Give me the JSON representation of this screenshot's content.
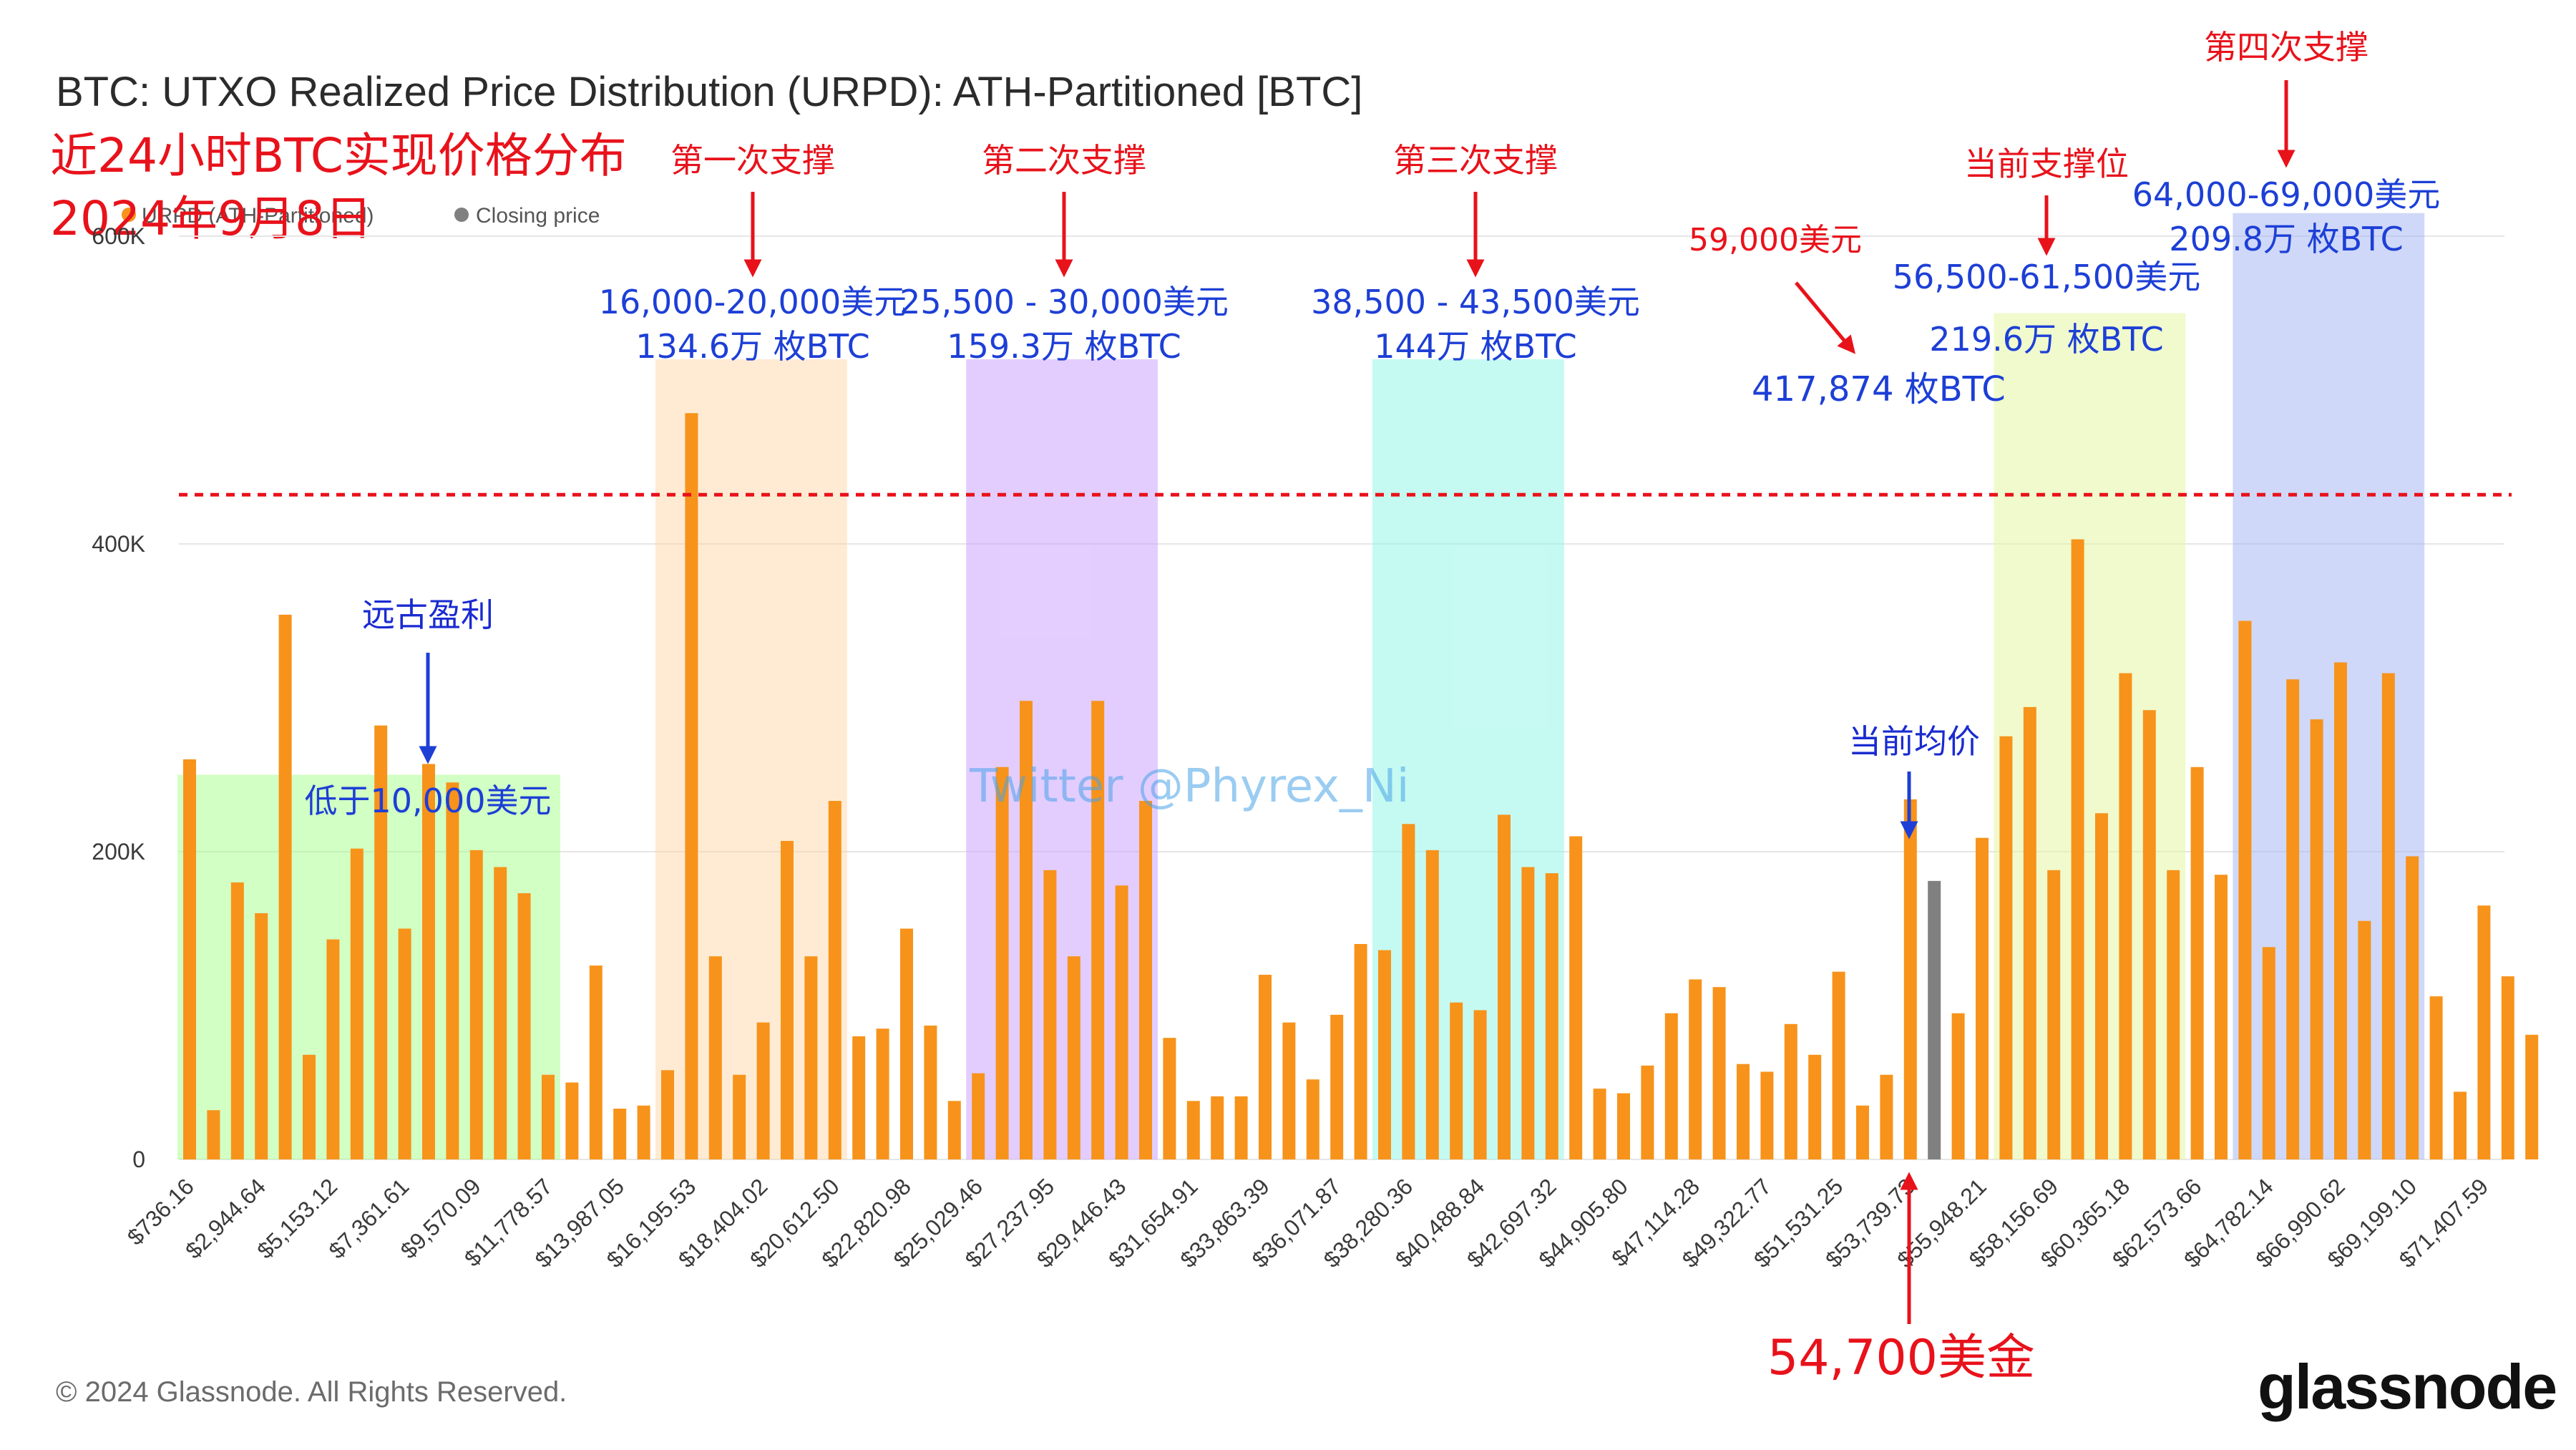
{
  "chart_data": {
    "type": "bar",
    "title": "BTC: UTXO Realized Price Distribution (URPD): ATH-Partitioned [BTC]",
    "subtitle_cn": "近24小时BTC实现价格分布",
    "date_cn": "2024年9月8日",
    "legend": [
      {
        "label": "URPD (ATH-Partitioned)",
        "color": "#f7931a"
      },
      {
        "label": "Closing price",
        "color": "#808080"
      }
    ],
    "ylim": [
      0,
      600000
    ],
    "yticks": [
      0,
      200000,
      400000,
      600000
    ],
    "ytick_labels": [
      "0",
      "200K",
      "400K",
      "600K"
    ],
    "xtick_labels": [
      "$736.16",
      "$2,944.64",
      "$5,153.12",
      "$7,361.61",
      "$9,570.09",
      "$11,778.57",
      "$13,987.05",
      "$16,195.53",
      "$18,404.02",
      "$20,612.50",
      "$22,820.98",
      "$25,029.46",
      "$27,237.95",
      "$29,446.43",
      "$31,654.91",
      "$33,863.39",
      "$36,071.87",
      "$38,280.36",
      "$40,488.84",
      "$42,697.32",
      "$44,905.80",
      "$47,114.28",
      "$49,322.77",
      "$51,531.25",
      "$53,739.73",
      "$55,948.21",
      "$58,156.69",
      "$60,365.18",
      "$62,573.66",
      "$64,782.14",
      "$66,990.62",
      "$69,199.10",
      "$71,407.59"
    ],
    "bins_per_tick": 3,
    "values": [
      260000,
      32000,
      180000,
      160000,
      354000,
      68000,
      143000,
      202000,
      282000,
      150000,
      257000,
      245000,
      201000,
      190000,
      173000,
      55000,
      50000,
      126000,
      33000,
      35000,
      58000,
      485000,
      132000,
      55000,
      89000,
      207000,
      132000,
      233000,
      80000,
      85000,
      150000,
      87000,
      38000,
      56000,
      255000,
      298000,
      188000,
      132000,
      298000,
      178000,
      233000,
      79000,
      38000,
      41000,
      41000,
      120000,
      89000,
      52000,
      94000,
      140000,
      136000,
      218000,
      201000,
      102000,
      97000,
      224000,
      190000,
      186000,
      210000,
      46000,
      43000,
      61000,
      95000,
      117000,
      112000,
      62000,
      57000,
      88000,
      68000,
      122000,
      35000,
      55000,
      234000,
      181000,
      95000,
      209000,
      275000,
      294000,
      188000,
      403000,
      225000,
      316000,
      292000,
      188000,
      255000,
      185000,
      350000,
      138000,
      312000,
      286000,
      323000,
      155000,
      316000,
      197000,
      106000,
      44000,
      165000,
      119000,
      81000
    ],
    "highlight_index": 73,
    "highlight_color": "#808080",
    "bar_color": "#f7931a",
    "reference_line": {
      "value": 432000,
      "style": "dashed",
      "color": "#e8121b"
    },
    "zones": [
      {
        "name": "ancient-profit",
        "start": 0,
        "end": 15,
        "color": "#9cff7a",
        "opacity": 0.45,
        "header": "远古盈利",
        "range": "低于10,000美元",
        "amount": ""
      },
      {
        "name": "first-support",
        "start": 20,
        "end": 27,
        "color": "#ffd39e",
        "opacity": 0.45,
        "header": "第一次支撑",
        "range": "16,000-20,000美元",
        "amount": "134.6万 枚BTC"
      },
      {
        "name": "second-support",
        "start": 33,
        "end": 40,
        "color": "#c79cff",
        "opacity": 0.5,
        "header": "第二次支撑",
        "range": "25,500 - 30,000美元",
        "amount": "159.3万 枚BTC"
      },
      {
        "name": "third-support",
        "start": 50,
        "end": 57,
        "color": "#8cf5e6",
        "opacity": 0.5,
        "header": "第三次支撑",
        "range": "38,500 - 43,500美元",
        "amount": "144万 枚BTC"
      },
      {
        "name": "current-support",
        "start": 76,
        "end": 83,
        "color": "#e4f5a4",
        "opacity": 0.55,
        "header": "当前支撑位",
        "range": "56,500-61,500美元",
        "amount": "219.6万 枚BTC"
      },
      {
        "name": "fourth-support",
        "start": 86,
        "end": 93,
        "color": "#9fb1f2",
        "opacity": 0.5,
        "header": "第四次支撑",
        "range": "64,000-69,000美元",
        "amount": "209.8万 枚BTC"
      }
    ],
    "annotations": {
      "price_59000": "59,000美元",
      "btc_417874": "417,874 枚BTC",
      "current_avg": "当前均价",
      "price_54700": "54,700美金",
      "watermark": "Twitter @Phyrex_Ni"
    }
  },
  "footer": {
    "copyright": "© 2024 Glassnode. All Rights Reserved.",
    "brand": "glassnode"
  }
}
